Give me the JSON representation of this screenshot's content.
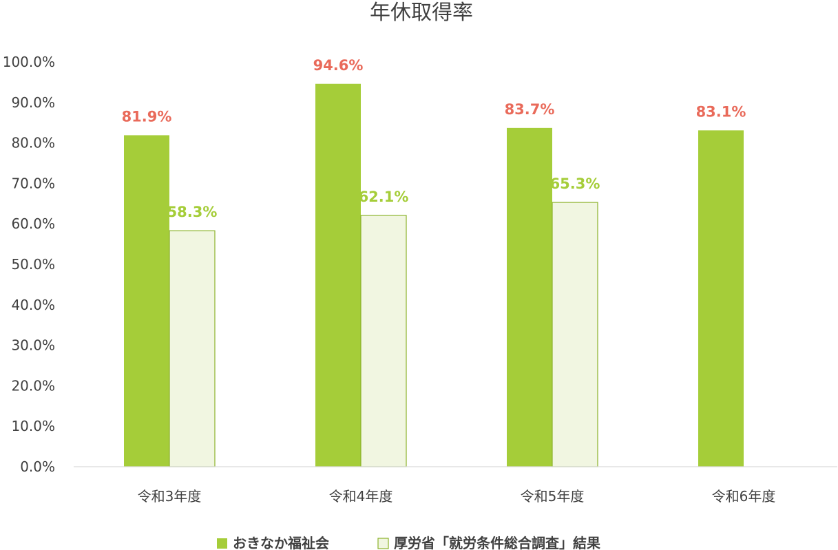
{
  "chart_data": {
    "type": "bar",
    "title": "年休取得率",
    "categories": [
      "令和3年度",
      "令和4年度",
      "令和5年度",
      "令和6年度"
    ],
    "series": [
      {
        "name": "おきなか福祉会",
        "values": [
          81.9,
          94.6,
          83.7,
          83.1
        ],
        "labels": [
          "81.9%",
          "94.6%",
          "83.7%",
          "83.1%"
        ],
        "color": "#a5cd39",
        "label_color": "#e96a5a"
      },
      {
        "name": "厚労省「就労条件総合調査」結果",
        "values": [
          58.3,
          62.1,
          65.3,
          null
        ],
        "labels": [
          "58.3%",
          "62.1%",
          "65.3%",
          ""
        ],
        "color": "#f1f6e1",
        "border_color": "#8bb22a",
        "label_color": "#a5cd39"
      }
    ],
    "ylim": [
      0,
      100
    ],
    "yticks": [
      "0.0%",
      "10.0%",
      "20.0%",
      "30.0%",
      "40.0%",
      "50.0%",
      "60.0%",
      "70.0%",
      "80.0%",
      "90.0%",
      "100.0%"
    ],
    "grid": false,
    "legend_position": "bottom"
  }
}
